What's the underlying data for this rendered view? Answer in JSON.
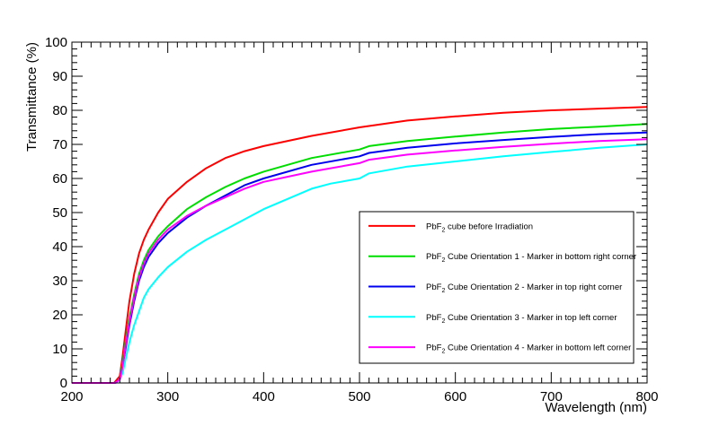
{
  "chart_data": {
    "type": "line",
    "title": "",
    "xlabel": "Wavelength (nm)",
    "ylabel": "Transmittance (%)",
    "xlim": [
      200,
      800
    ],
    "ylim": [
      0,
      100
    ],
    "x_ticks": [
      "200",
      "300",
      "400",
      "500",
      "600",
      "700",
      "800"
    ],
    "y_ticks": [
      "0",
      "10",
      "20",
      "30",
      "40",
      "50",
      "60",
      "70",
      "80",
      "90",
      "100"
    ],
    "grid": false,
    "legend_position": "bottom-right",
    "series": [
      {
        "name": "PbF2 cube before Irradiation",
        "legend_main": "PbF",
        "legend_sub": "2",
        "legend_rest": " cube before Irradiation",
        "color": "#ff0000",
        "points": [
          [
            200,
            0
          ],
          [
            244,
            0
          ],
          [
            250,
            2
          ],
          [
            253,
            8
          ],
          [
            256,
            15
          ],
          [
            260,
            24
          ],
          [
            265,
            32
          ],
          [
            270,
            38
          ],
          [
            275,
            42
          ],
          [
            280,
            45
          ],
          [
            290,
            50
          ],
          [
            300,
            54
          ],
          [
            320,
            59
          ],
          [
            340,
            63
          ],
          [
            360,
            66
          ],
          [
            380,
            68
          ],
          [
            400,
            69.5
          ],
          [
            450,
            72.5
          ],
          [
            500,
            75
          ],
          [
            550,
            77
          ],
          [
            600,
            78.2
          ],
          [
            650,
            79.3
          ],
          [
            700,
            80
          ],
          [
            750,
            80.5
          ],
          [
            800,
            81
          ]
        ]
      },
      {
        "name": "PbF2 Cube Orientation 1 - Marker in bottom right corner",
        "legend_main": "PbF",
        "legend_sub": "2",
        "legend_rest": " Cube Orientation 1 - Marker in bottom right corner",
        "color": "#00dd00",
        "points": [
          [
            200,
            0
          ],
          [
            245,
            0
          ],
          [
            250,
            1
          ],
          [
            253,
            6
          ],
          [
            256,
            12
          ],
          [
            260,
            19
          ],
          [
            265,
            26
          ],
          [
            270,
            32
          ],
          [
            275,
            36
          ],
          [
            280,
            39
          ],
          [
            290,
            43
          ],
          [
            300,
            46
          ],
          [
            320,
            51
          ],
          [
            340,
            54.5
          ],
          [
            360,
            57.5
          ],
          [
            380,
            60
          ],
          [
            400,
            62
          ],
          [
            450,
            66
          ],
          [
            500,
            68.5
          ],
          [
            510,
            69.5
          ],
          [
            550,
            71
          ],
          [
            600,
            72.3
          ],
          [
            650,
            73.5
          ],
          [
            700,
            74.5
          ],
          [
            750,
            75.2
          ],
          [
            800,
            76
          ]
        ]
      },
      {
        "name": "PbF2 Cube Orientation 2 - Marker in top right corner",
        "legend_main": "PbF",
        "legend_sub": "2",
        "legend_rest": " Cube Orientation 2 - Marker in top right corner",
        "color": "#0000ee",
        "points": [
          [
            200,
            0
          ],
          [
            245,
            0
          ],
          [
            250,
            1
          ],
          [
            253,
            5
          ],
          [
            256,
            10
          ],
          [
            260,
            17
          ],
          [
            265,
            24
          ],
          [
            270,
            30
          ],
          [
            275,
            34
          ],
          [
            280,
            37
          ],
          [
            290,
            41
          ],
          [
            300,
            44
          ],
          [
            320,
            48.5
          ],
          [
            340,
            52
          ],
          [
            360,
            55
          ],
          [
            380,
            58
          ],
          [
            400,
            60
          ],
          [
            450,
            64
          ],
          [
            500,
            66.5
          ],
          [
            510,
            67.5
          ],
          [
            550,
            69
          ],
          [
            600,
            70.3
          ],
          [
            650,
            71.3
          ],
          [
            700,
            72.2
          ],
          [
            750,
            73
          ],
          [
            800,
            73.5
          ]
        ]
      },
      {
        "name": "PbF2 Cube Orientation 3 - Marker in top left corner",
        "legend_main": "PbF",
        "legend_sub": "2",
        "legend_rest": " Cube Orientation 3 - Marker in top left corner",
        "color": "#00ffff",
        "points": [
          [
            200,
            0
          ],
          [
            246,
            0
          ],
          [
            250,
            1
          ],
          [
            253,
            3
          ],
          [
            256,
            7
          ],
          [
            260,
            12
          ],
          [
            265,
            17
          ],
          [
            270,
            21
          ],
          [
            275,
            25
          ],
          [
            280,
            27.5
          ],
          [
            290,
            31
          ],
          [
            300,
            34
          ],
          [
            320,
            38.5
          ],
          [
            340,
            42
          ],
          [
            360,
            45
          ],
          [
            380,
            48
          ],
          [
            400,
            51
          ],
          [
            450,
            57
          ],
          [
            470,
            58.5
          ],
          [
            500,
            60
          ],
          [
            510,
            61.5
          ],
          [
            550,
            63.5
          ],
          [
            600,
            65
          ],
          [
            650,
            66.5
          ],
          [
            700,
            67.8
          ],
          [
            750,
            69
          ],
          [
            800,
            70
          ]
        ]
      },
      {
        "name": "PbF2 Cube Orientation 4 - Marker in bottom left corner",
        "legend_main": "PbF",
        "legend_sub": "2",
        "legend_rest": " Cube Orientation 4 - Marker in bottom left corner",
        "color": "#ff00ff",
        "points": [
          [
            200,
            0
          ],
          [
            245,
            0
          ],
          [
            250,
            1
          ],
          [
            253,
            5
          ],
          [
            256,
            11
          ],
          [
            260,
            18
          ],
          [
            265,
            25
          ],
          [
            270,
            31
          ],
          [
            275,
            35
          ],
          [
            280,
            38
          ],
          [
            290,
            42
          ],
          [
            300,
            45
          ],
          [
            320,
            49
          ],
          [
            340,
            52
          ],
          [
            360,
            54.5
          ],
          [
            380,
            57
          ],
          [
            400,
            59
          ],
          [
            450,
            62
          ],
          [
            500,
            64.5
          ],
          [
            510,
            65.5
          ],
          [
            550,
            67
          ],
          [
            600,
            68.2
          ],
          [
            650,
            69.3
          ],
          [
            700,
            70.2
          ],
          [
            750,
            71
          ],
          [
            800,
            71.5
          ]
        ]
      }
    ]
  }
}
